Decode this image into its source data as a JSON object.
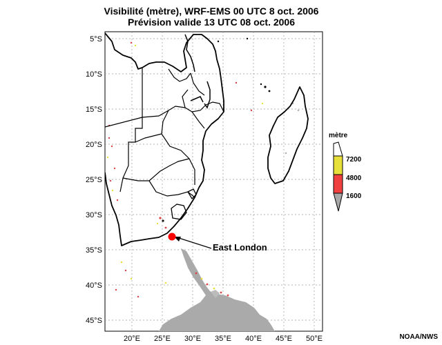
{
  "title_line1": "Visibilité (mètre), WRF-EMS 00 UTC 8 oct. 2006",
  "title_line2": "Prévision valide 13 UTC 08 oct. 2006",
  "lat_labels": [
    "5°S",
    "10°S",
    "15°S",
    "20°S",
    "25°S",
    "30°S",
    "35°S",
    "40°S",
    "45°S"
  ],
  "lon_labels": [
    "20°E",
    "25°E",
    "30°E",
    "35°E",
    "40°E",
    "45°E",
    "50°E"
  ],
  "legend": {
    "title": "mètre",
    "entries": [
      {
        "label": "7200",
        "color": "#e8e03a"
      },
      {
        "label": "4800",
        "color": "#f04040"
      },
      {
        "label": "1600",
        "color": "#a8a8a8"
      }
    ]
  },
  "annotation": {
    "label": "East London",
    "marker_color": "#ff0000"
  },
  "fog_color": "#aaaaaa",
  "credit": "NOAA/NWS"
}
